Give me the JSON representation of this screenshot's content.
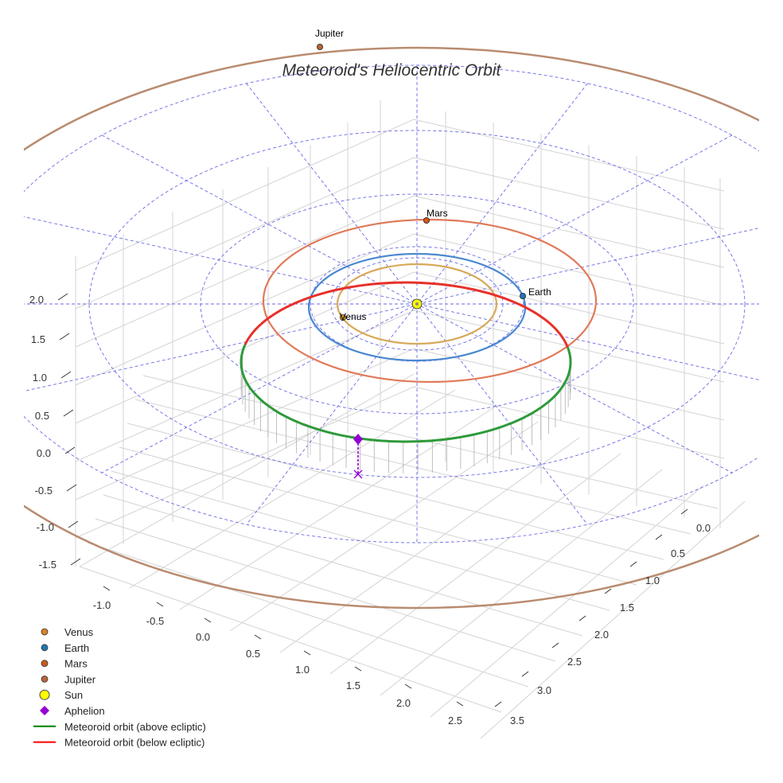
{
  "chart_data": {
    "type": "3d-orbit",
    "title": "Meteoroid's Heliocentric Orbit",
    "axes": {
      "x_ticks": [
        "-1.0",
        "-0.5",
        "0.0",
        "0.5",
        "1.0",
        "1.5",
        "2.0",
        "2.5"
      ],
      "y_ticks": [
        "0.0",
        "0.5",
        "1.0",
        "1.5",
        "2.0",
        "2.5",
        "3.0",
        "3.5"
      ],
      "z_ticks": [
        "2.0",
        "1.5",
        "1.0",
        "0.5",
        "0.0",
        "-0.5",
        "-1.0",
        "-1.5"
      ]
    },
    "orbit_radii_au": {
      "Venus": 0.72,
      "Earth": 1.0,
      "Mars": 1.52,
      "Jupiter": 5.2
    },
    "planets": [
      {
        "name": "Venus",
        "label": "Venus",
        "color": "#d99a1e"
      },
      {
        "name": "Earth",
        "label": "Earth",
        "color": "#1f77b4"
      },
      {
        "name": "Mars",
        "label": "Mars",
        "color": "#d4561c"
      },
      {
        "name": "Jupiter",
        "label": "Jupiter",
        "color": "#b5653a"
      }
    ],
    "orbit_colors": {
      "Venus": "#d7a95a",
      "Earth": "#4a88d0",
      "Mars": "#e07a5a",
      "Jupiter": "#b98b70",
      "meteoroid_above": "#2e9a3a",
      "meteoroid_below": "#e8302a",
      "grid_circles": "#6a6ae8"
    },
    "legend": [
      {
        "label": "Venus",
        "marker": "circle",
        "color": "#d9822b"
      },
      {
        "label": "Earth",
        "marker": "circle",
        "color": "#1f77b4"
      },
      {
        "label": "Mars",
        "marker": "circle",
        "color": "#c85a1e"
      },
      {
        "label": "Jupiter",
        "marker": "circle",
        "color": "#b5653a"
      },
      {
        "label": "Sun",
        "marker": "big-circle",
        "color": "#ffff00"
      },
      {
        "label": "Aphelion",
        "marker": "diamond",
        "color": "#9400d3"
      },
      {
        "label": "Meteoroid orbit (above ecliptic)",
        "marker": "line",
        "color": "#008000"
      },
      {
        "label": "Meteoroid orbit (below ecliptic)",
        "marker": "line",
        "color": "#ff0000"
      }
    ]
  }
}
